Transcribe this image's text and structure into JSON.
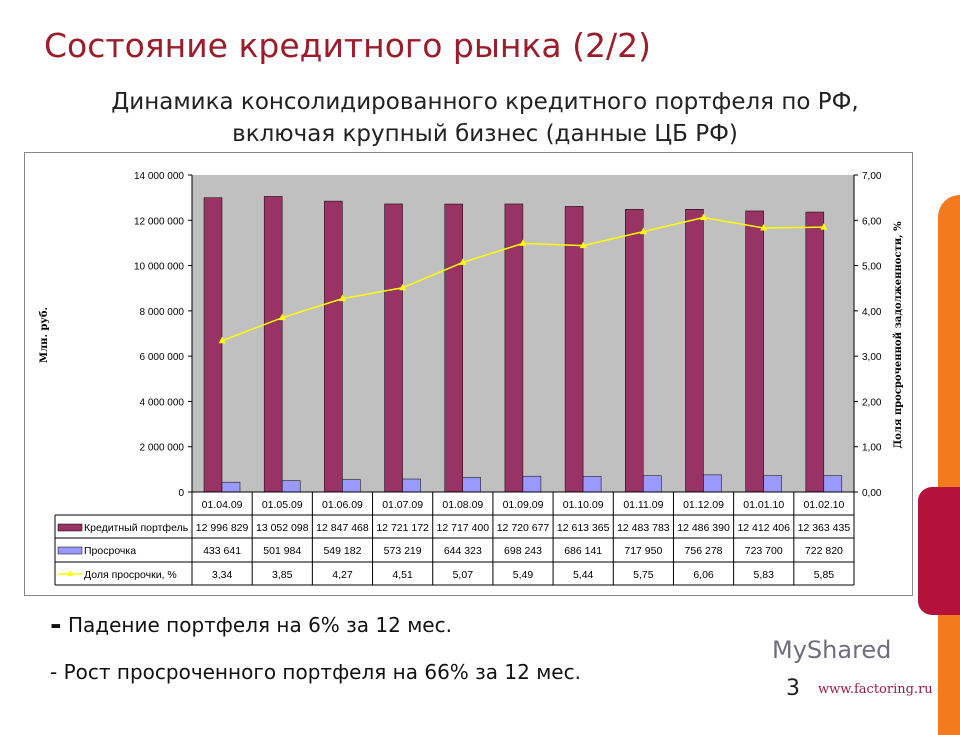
{
  "title": "Состояние кредитного рынка (2/2)",
  "subtitle": "Динамика консолидированного кредитного портфеля по РФ, включая крупный бизнес (данные ЦБ РФ)",
  "bullets": [
    "Падение портфеля на 6% за 12 мес.",
    "Рост просроченного портфеля на 66% за 12 мес."
  ],
  "bullet_marker": "-",
  "page_number": "3",
  "watermark": "MyShared",
  "footer_url": "www.factoring.ru",
  "colors": {
    "portfolio": "#993366",
    "overdue": "#9999ff",
    "share": "#ffff00",
    "plot_bg": "#c0c0c0",
    "title": "#9b1c2a"
  },
  "chart_data": {
    "type": "bar",
    "categories": [
      "01.04.09",
      "01.05.09",
      "01.06.09",
      "01.07.09",
      "01.08.09",
      "01.09.09",
      "01.10.09",
      "01.11.09",
      "01.12.09",
      "01.01.10",
      "01.02.10"
    ],
    "series": [
      {
        "name": "Кредитный портфель",
        "axis": "left",
        "type": "bar",
        "values": [
          12996829,
          13052098,
          12847468,
          12721172,
          12717400,
          12720677,
          12613365,
          12483783,
          12486390,
          12412406,
          12363435
        ],
        "labels": [
          "12 996 829",
          "13 052 098",
          "12 847 468",
          "12 721 172",
          "12 717 400",
          "12 720 677",
          "12 613 365",
          "12 483 783",
          "12 486 390",
          "12 412 406",
          "12 363 435"
        ]
      },
      {
        "name": "Просрочка",
        "axis": "left",
        "type": "bar",
        "values": [
          433641,
          501984,
          549182,
          573219,
          644323,
          698243,
          686141,
          717950,
          756278,
          723700,
          722820
        ],
        "labels": [
          "433 641",
          "501 984",
          "549 182",
          "573 219",
          "644 323",
          "698 243",
          "686 141",
          "717 950",
          "756 278",
          "723 700",
          "722 820"
        ]
      },
      {
        "name": "Доля просрочки, %",
        "axis": "right",
        "type": "line",
        "values": [
          3.34,
          3.85,
          4.27,
          4.51,
          5.07,
          5.49,
          5.44,
          5.75,
          6.06,
          5.83,
          5.85
        ],
        "labels": [
          "3,34",
          "3,85",
          "4,27",
          "4,51",
          "5,07",
          "5,49",
          "5,44",
          "5,75",
          "6,06",
          "5,83",
          "5,85"
        ]
      }
    ],
    "ylabel": "Млн. руб.",
    "y2label": "Доля просроченной задолженности, %",
    "ylim": [
      0,
      14000000
    ],
    "y2lim": [
      0,
      7
    ],
    "yticks": [
      "0",
      "2 000 000",
      "4 000 000",
      "6 000 000",
      "8 000 000",
      "10 000 000",
      "12 000 000",
      "14 000 000"
    ],
    "y2ticks": [
      "0,00",
      "1,00",
      "2,00",
      "3,00",
      "4,00",
      "5,00",
      "6,00",
      "7,00"
    ],
    "legend": "data-table-below"
  }
}
